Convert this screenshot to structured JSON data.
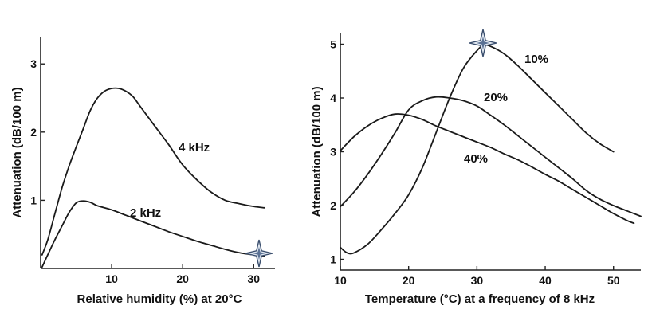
{
  "chart_data": [
    {
      "type": "line",
      "xlabel": "Relative humidity (%) at 20°C",
      "ylabel": "Attenuation (dB/100 m)",
      "xlim": [
        0,
        33
      ],
      "ylim": [
        0,
        3.4
      ],
      "x_ticks": [
        10,
        20,
        30
      ],
      "y_ticks": [
        1,
        2,
        3
      ],
      "grid": false,
      "series": [
        {
          "name": "4 kHz",
          "points": [
            [
              0.2,
              0.2
            ],
            [
              1,
              0.42
            ],
            [
              2,
              0.8
            ],
            [
              3,
              1.18
            ],
            [
              4,
              1.5
            ],
            [
              5,
              1.78
            ],
            [
              6,
              2.05
            ],
            [
              7,
              2.32
            ],
            [
              8,
              2.5
            ],
            [
              9,
              2.6
            ],
            [
              10,
              2.64
            ],
            [
              11,
              2.64
            ],
            [
              12,
              2.6
            ],
            [
              13,
              2.52
            ],
            [
              14,
              2.38
            ],
            [
              16,
              2.1
            ],
            [
              18,
              1.82
            ],
            [
              20,
              1.52
            ],
            [
              22,
              1.3
            ],
            [
              24,
              1.12
            ],
            [
              26,
              1.0
            ],
            [
              28,
              0.95
            ],
            [
              30,
              0.91
            ],
            [
              31.5,
              0.89
            ]
          ]
        },
        {
          "name": "2 kHz",
          "points": [
            [
              0.2,
              0.02
            ],
            [
              1,
              0.2
            ],
            [
              2,
              0.42
            ],
            [
              3,
              0.62
            ],
            [
              4,
              0.82
            ],
            [
              5,
              0.96
            ],
            [
              6,
              0.99
            ],
            [
              7,
              0.97
            ],
            [
              8,
              0.92
            ],
            [
              10,
              0.86
            ],
            [
              12,
              0.78
            ],
            [
              14,
              0.7
            ],
            [
              16,
              0.62
            ],
            [
              18,
              0.54
            ],
            [
              20,
              0.47
            ],
            [
              22,
              0.4
            ],
            [
              24,
              0.34
            ],
            [
              26,
              0.28
            ],
            [
              28,
              0.23
            ],
            [
              30,
              0.2
            ],
            [
              31.5,
              0.18
            ]
          ]
        }
      ]
    },
    {
      "type": "line",
      "xlabel": "Temperature (°C) at a frequency of 8 kHz",
      "ylabel": "Attenuation (dB/100 m)",
      "xlim": [
        10,
        54
      ],
      "ylim": [
        0.8,
        5.2
      ],
      "x_ticks": [
        10,
        20,
        30,
        40,
        50
      ],
      "y_ticks": [
        1,
        2,
        3,
        4,
        5
      ],
      "grid": false,
      "series": [
        {
          "name": "10%",
          "points": [
            [
              10,
              1.22
            ],
            [
              11,
              1.12
            ],
            [
              12,
              1.12
            ],
            [
              14,
              1.28
            ],
            [
              16,
              1.55
            ],
            [
              18,
              1.85
            ],
            [
              20,
              2.2
            ],
            [
              22,
              2.7
            ],
            [
              24,
              3.35
            ],
            [
              26,
              4.0
            ],
            [
              28,
              4.55
            ],
            [
              30,
              4.88
            ],
            [
              31,
              4.98
            ],
            [
              32,
              4.96
            ],
            [
              34,
              4.82
            ],
            [
              36,
              4.6
            ],
            [
              38,
              4.35
            ],
            [
              40,
              4.1
            ],
            [
              42,
              3.85
            ],
            [
              44,
              3.6
            ],
            [
              46,
              3.35
            ],
            [
              48,
              3.15
            ],
            [
              50,
              3.0
            ]
          ]
        },
        {
          "name": "20%",
          "points": [
            [
              10,
              1.98
            ],
            [
              12,
              2.25
            ],
            [
              14,
              2.58
            ],
            [
              16,
              2.95
            ],
            [
              18,
              3.35
            ],
            [
              20,
              3.78
            ],
            [
              22,
              3.95
            ],
            [
              24,
              4.02
            ],
            [
              26,
              4.0
            ],
            [
              28,
              3.95
            ],
            [
              30,
              3.85
            ],
            [
              32,
              3.68
            ],
            [
              34,
              3.5
            ],
            [
              36,
              3.3
            ],
            [
              38,
              3.1
            ],
            [
              40,
              2.9
            ],
            [
              42,
              2.7
            ],
            [
              44,
              2.5
            ],
            [
              46,
              2.28
            ],
            [
              48,
              2.12
            ],
            [
              50,
              2.0
            ],
            [
              52,
              1.9
            ],
            [
              54,
              1.8
            ]
          ]
        },
        {
          "name": "40%",
          "points": [
            [
              10,
              3.02
            ],
            [
              12,
              3.28
            ],
            [
              14,
              3.48
            ],
            [
              16,
              3.62
            ],
            [
              18,
              3.7
            ],
            [
              20,
              3.68
            ],
            [
              22,
              3.6
            ],
            [
              24,
              3.48
            ],
            [
              26,
              3.38
            ],
            [
              28,
              3.28
            ],
            [
              30,
              3.18
            ],
            [
              32,
              3.08
            ],
            [
              34,
              2.96
            ],
            [
              36,
              2.85
            ],
            [
              38,
              2.72
            ],
            [
              40,
              2.58
            ],
            [
              42,
              2.45
            ],
            [
              44,
              2.3
            ],
            [
              46,
              2.15
            ],
            [
              48,
              2.0
            ],
            [
              50,
              1.85
            ],
            [
              52,
              1.72
            ],
            [
              53,
              1.67
            ]
          ]
        }
      ]
    }
  ]
}
